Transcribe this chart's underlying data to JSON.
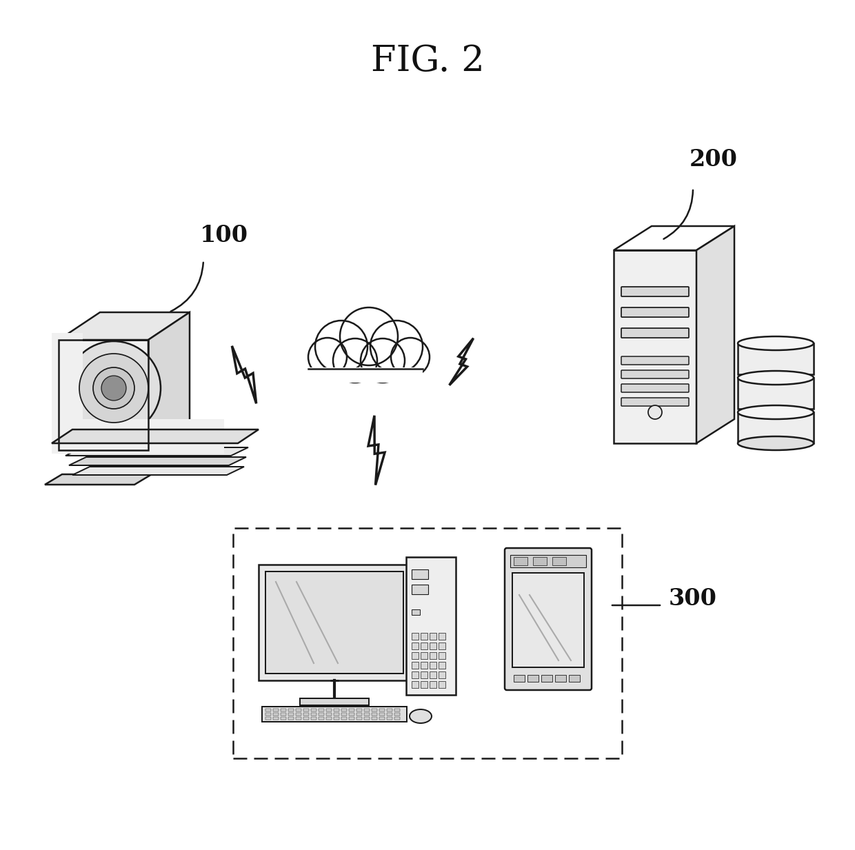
{
  "title": "FIG. 2",
  "title_fontsize": 38,
  "background_color": "#ffffff",
  "label_100": "100",
  "label_200": "200",
  "label_300": "300",
  "label_fontsize": 24,
  "line_color": "#1a1a1a",
  "line_width": 1.8
}
